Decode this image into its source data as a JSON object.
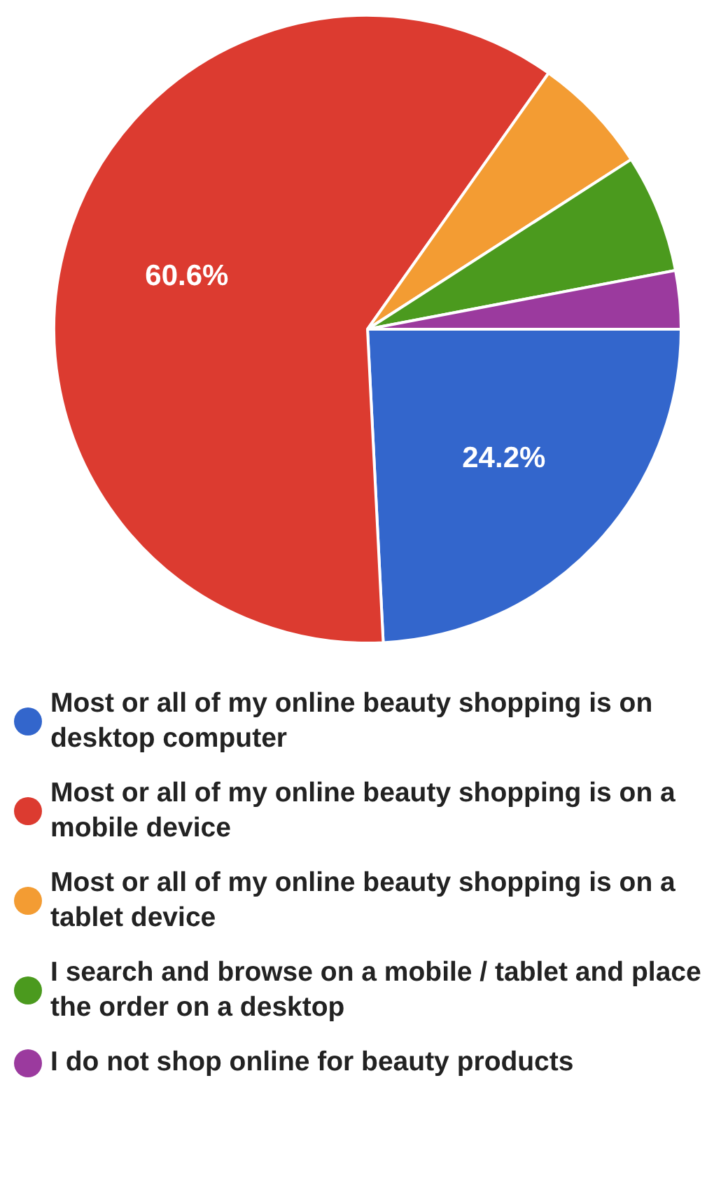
{
  "chart_data": {
    "type": "pie",
    "categories": [
      "Most or all of my online beauty shopping is on desktop computer",
      "Most or all of my online beauty shopping is on a mobile device",
      "Most or all of my online beauty shopping is on a tablet device",
      "I search and browse on a mobile / tablet and place the order on a desktop",
      "I do not shop online for beauty products"
    ],
    "values": [
      24.2,
      60.6,
      6.1,
      6.1,
      3.0
    ],
    "colors": [
      "#3366cc",
      "#dc3b30",
      "#f39c33",
      "#4b9a1e",
      "#9b3a9e"
    ],
    "value_labels": [
      "24.2%",
      "60.6%",
      null,
      null,
      null
    ],
    "legend": "bottom"
  }
}
